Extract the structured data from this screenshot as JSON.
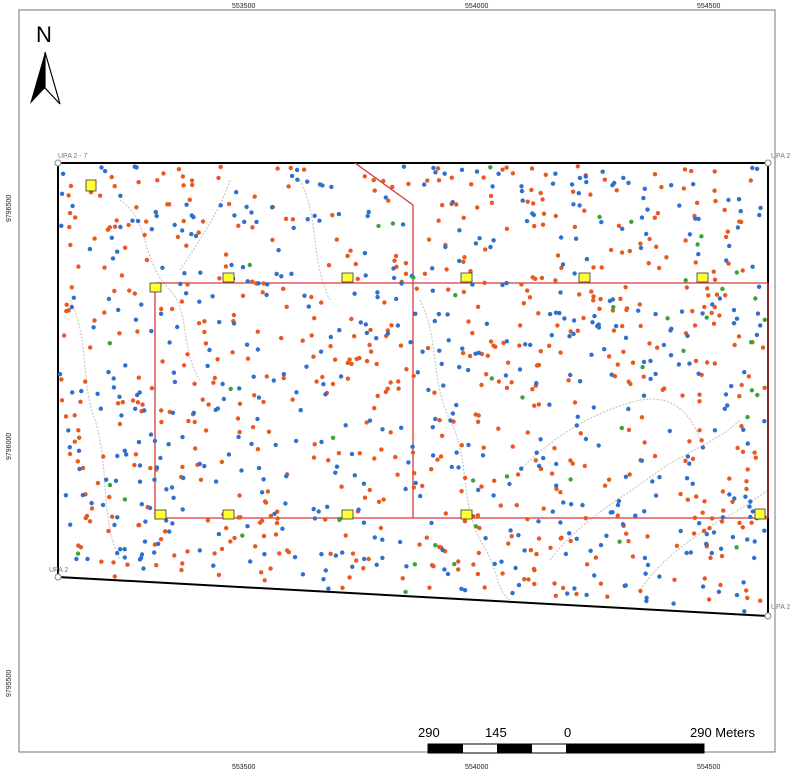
{
  "north": {
    "label": "N",
    "icon": "north-arrow-icon"
  },
  "axes": {
    "top_ticks": [
      "553500",
      "554000",
      "554500"
    ],
    "bottom_ticks": [
      "553500",
      "554000",
      "554500"
    ],
    "left_ticks": [
      "9796500",
      "9796000",
      "9795500"
    ]
  },
  "corners": {
    "top_left": "UPA 2 - 7",
    "top_right": "UPA 2",
    "bottom_left": "UPA 2",
    "bottom_right": "UPA 2"
  },
  "scale_bar": {
    "labels": [
      "290",
      "145",
      "0",
      "290 Meters"
    ]
  },
  "colors": {
    "orange_points": "#e8581f",
    "blue_points": "#2f6fcf",
    "green_points": "#3aa33a",
    "markers": "#ffff33",
    "grid_lines": "#d9373a",
    "boundary": "#000000",
    "contours": "#c8c8c8"
  },
  "legend_semantics": {
    "point_classes": [
      "orange",
      "blue",
      "green"
    ],
    "markers": "yellow squares"
  }
}
